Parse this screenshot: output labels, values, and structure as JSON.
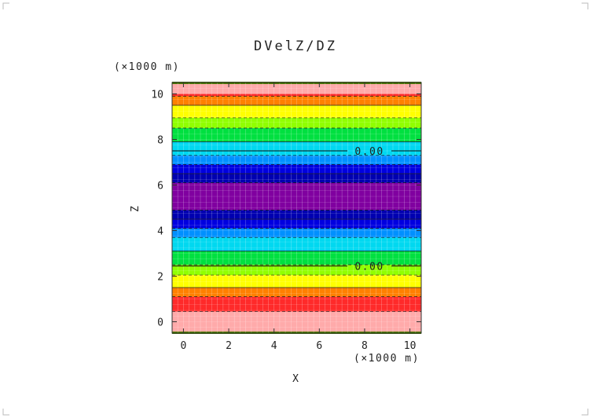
{
  "chart_data": {
    "type": "heatmap",
    "title": "DVelZ/DZ",
    "xlabel": "X",
    "ylabel": "Z",
    "x_unit": "(×1000 m)",
    "y_unit": "(×1000 m)",
    "xlim": [
      -0.5,
      10.5
    ],
    "ylim": [
      -0.5,
      10.5
    ],
    "xticks": [
      0,
      2,
      4,
      6,
      8,
      10
    ],
    "yticks": [
      0,
      2,
      4,
      6,
      8,
      10
    ],
    "colors": {
      "lightred": "#ffaaaa",
      "red": "#ff2a2a",
      "orange": "#ff8000",
      "yellow": "#ffff00",
      "lightgreen": "#90ff00",
      "green": "#00e040",
      "cyan": "#00d8f0",
      "skyblue": "#0090ff",
      "blue": "#0000e0",
      "navy": "#0000b0",
      "purple": "#8000a0",
      "frame_top": "#4a7a00"
    },
    "bands": [
      {
        "z0": -0.5,
        "z1": 0.45,
        "color": "lightred"
      },
      {
        "z0": 0.45,
        "z1": 1.1,
        "color": "red"
      },
      {
        "z0": 1.1,
        "z1": 1.5,
        "color": "orange"
      },
      {
        "z0": 1.5,
        "z1": 2.05,
        "color": "yellow"
      },
      {
        "z0": 2.05,
        "z1": 2.5,
        "color": "lightgreen"
      },
      {
        "z0": 2.5,
        "z1": 3.1,
        "color": "green"
      },
      {
        "z0": 3.1,
        "z1": 3.7,
        "color": "cyan"
      },
      {
        "z0": 3.7,
        "z1": 4.1,
        "color": "skyblue"
      },
      {
        "z0": 4.1,
        "z1": 4.5,
        "color": "blue"
      },
      {
        "z0": 4.5,
        "z1": 4.9,
        "color": "navy"
      },
      {
        "z0": 4.9,
        "z1": 6.1,
        "color": "purple"
      },
      {
        "z0": 6.1,
        "z1": 6.5,
        "color": "navy"
      },
      {
        "z0": 6.5,
        "z1": 6.9,
        "color": "blue"
      },
      {
        "z0": 6.9,
        "z1": 7.3,
        "color": "skyblue"
      },
      {
        "z0": 7.3,
        "z1": 7.9,
        "color": "cyan"
      },
      {
        "z0": 7.9,
        "z1": 8.5,
        "color": "green"
      },
      {
        "z0": 8.5,
        "z1": 8.95,
        "color": "lightgreen"
      },
      {
        "z0": 8.95,
        "z1": 9.5,
        "color": "yellow"
      },
      {
        "z0": 9.5,
        "z1": 9.9,
        "color": "orange"
      },
      {
        "z0": 9.9,
        "z1": 10.55,
        "color": "red"
      }
    ],
    "top_band": {
      "z0": 10.0,
      "z1": 10.5,
      "color": "lightred"
    },
    "contours": [
      {
        "z": 2.45,
        "label": "0.00"
      },
      {
        "z": 7.5,
        "label": "0.00"
      }
    ]
  }
}
